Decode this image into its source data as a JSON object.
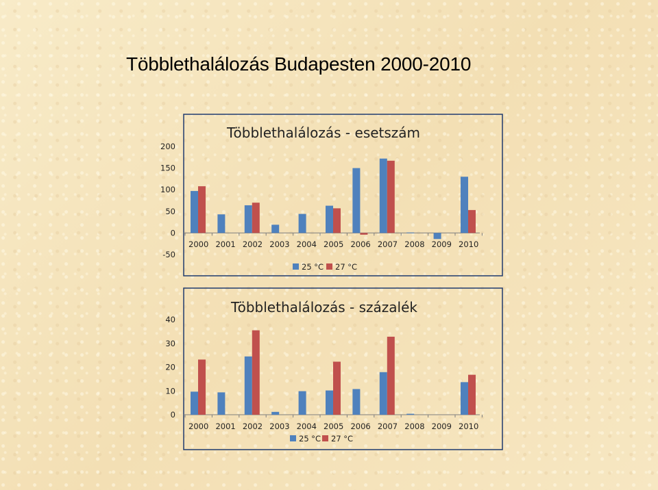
{
  "page": {
    "title": "Többlethalálozás Budapesten 2000-2010"
  },
  "colors": {
    "series_25": "#4f81bd",
    "series_27": "#c0504d",
    "frame": "#1f3a6e"
  },
  "chart_data": [
    {
      "type": "bar",
      "title": "Többlethalálozás - esetszám",
      "categories": [
        "2000",
        "2001",
        "2002",
        "2003",
        "2004",
        "2005",
        "2006",
        "2007",
        "2008",
        "2009",
        "2010"
      ],
      "series": [
        {
          "name": "25 °C",
          "values": [
            97,
            43,
            64,
            19,
            44,
            63,
            150,
            172,
            1,
            -14,
            130
          ]
        },
        {
          "name": "27 °C",
          "values": [
            108,
            null,
            70,
            null,
            null,
            57,
            -4,
            167,
            null,
            null,
            53
          ]
        }
      ],
      "ylim": [
        -50,
        200
      ],
      "yticks": [
        "200",
        "150",
        "100",
        "50",
        "0",
        "-50"
      ],
      "ytick_values": [
        200,
        150,
        100,
        50,
        0,
        -50
      ],
      "legend": [
        "25 °C",
        "27 °C"
      ],
      "legend_position": "bottom",
      "grid": false
    },
    {
      "type": "bar",
      "title": "Többlethalálozás - százalék",
      "categories": [
        "2000",
        "2001",
        "2002",
        "2003",
        "2004",
        "2005",
        "2006",
        "2007",
        "2008",
        "2009",
        "2010"
      ],
      "series": [
        {
          "name": "25 °C",
          "values": [
            9.7,
            9.4,
            24.5,
            1.2,
            9.9,
            10.2,
            10.8,
            17.9,
            0.4,
            null,
            13.7
          ]
        },
        {
          "name": "27 °C",
          "values": [
            23.2,
            null,
            35.5,
            null,
            null,
            22.3,
            null,
            32.8,
            null,
            null,
            16.8
          ]
        }
      ],
      "ylim": [
        0,
        40
      ],
      "yticks": [
        "40",
        "30",
        "20",
        "10",
        "0"
      ],
      "ytick_values": [
        40,
        30,
        20,
        10,
        0
      ],
      "legend": [
        "25 °C",
        "27 °C"
      ],
      "legend_position": "bottom",
      "grid": false
    }
  ]
}
